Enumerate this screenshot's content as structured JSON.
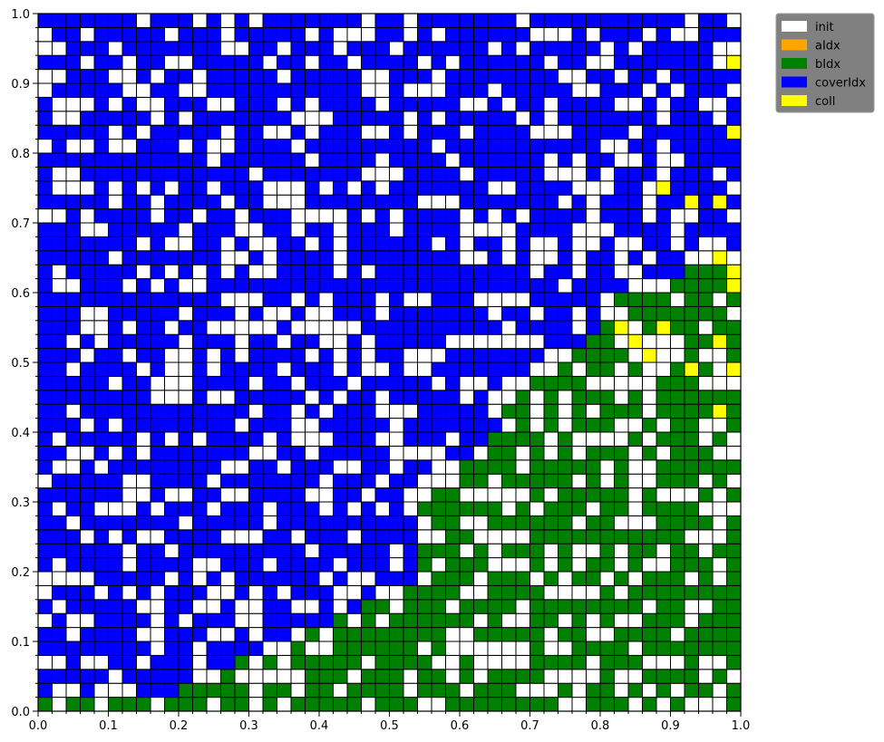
{
  "chart_data": {
    "type": "heatmap",
    "title": "",
    "xlabel": "",
    "ylabel": "",
    "xlim": [
      0.0,
      1.0
    ],
    "ylim": [
      0.0,
      1.0
    ],
    "grid_size": 50,
    "xticks": [
      "0.0",
      "0.1",
      "0.2",
      "0.3",
      "0.4",
      "0.5",
      "0.6",
      "0.7",
      "0.8",
      "0.9",
      "1.0"
    ],
    "yticks": [
      "0.0",
      "0.1",
      "0.2",
      "0.3",
      "0.4",
      "0.5",
      "0.6",
      "0.7",
      "0.8",
      "0.9",
      "1.0"
    ],
    "grid": true,
    "legend_placement": "outside top-right",
    "categories": [
      {
        "name": "init",
        "color": "#ffffff"
      },
      {
        "name": "aIdx",
        "color": "#ffa500"
      },
      {
        "name": "bIdx",
        "color": "#008000"
      },
      {
        "name": "coverIdx",
        "color": "#0000ff"
      },
      {
        "name": "coll",
        "color": "#ffff00"
      }
    ],
    "coll_cells": [
      [
        49,
        46
      ],
      [
        49,
        41
      ],
      [
        44,
        37
      ],
      [
        46,
        36
      ],
      [
        48,
        36
      ],
      [
        48,
        32
      ],
      [
        49,
        31
      ],
      [
        49,
        30
      ],
      [
        41,
        27
      ],
      [
        42,
        26
      ],
      [
        44,
        27
      ],
      [
        43,
        25
      ],
      [
        48,
        26
      ],
      [
        46,
        24
      ],
      [
        49,
        24
      ],
      [
        48,
        21
      ]
    ]
  }
}
